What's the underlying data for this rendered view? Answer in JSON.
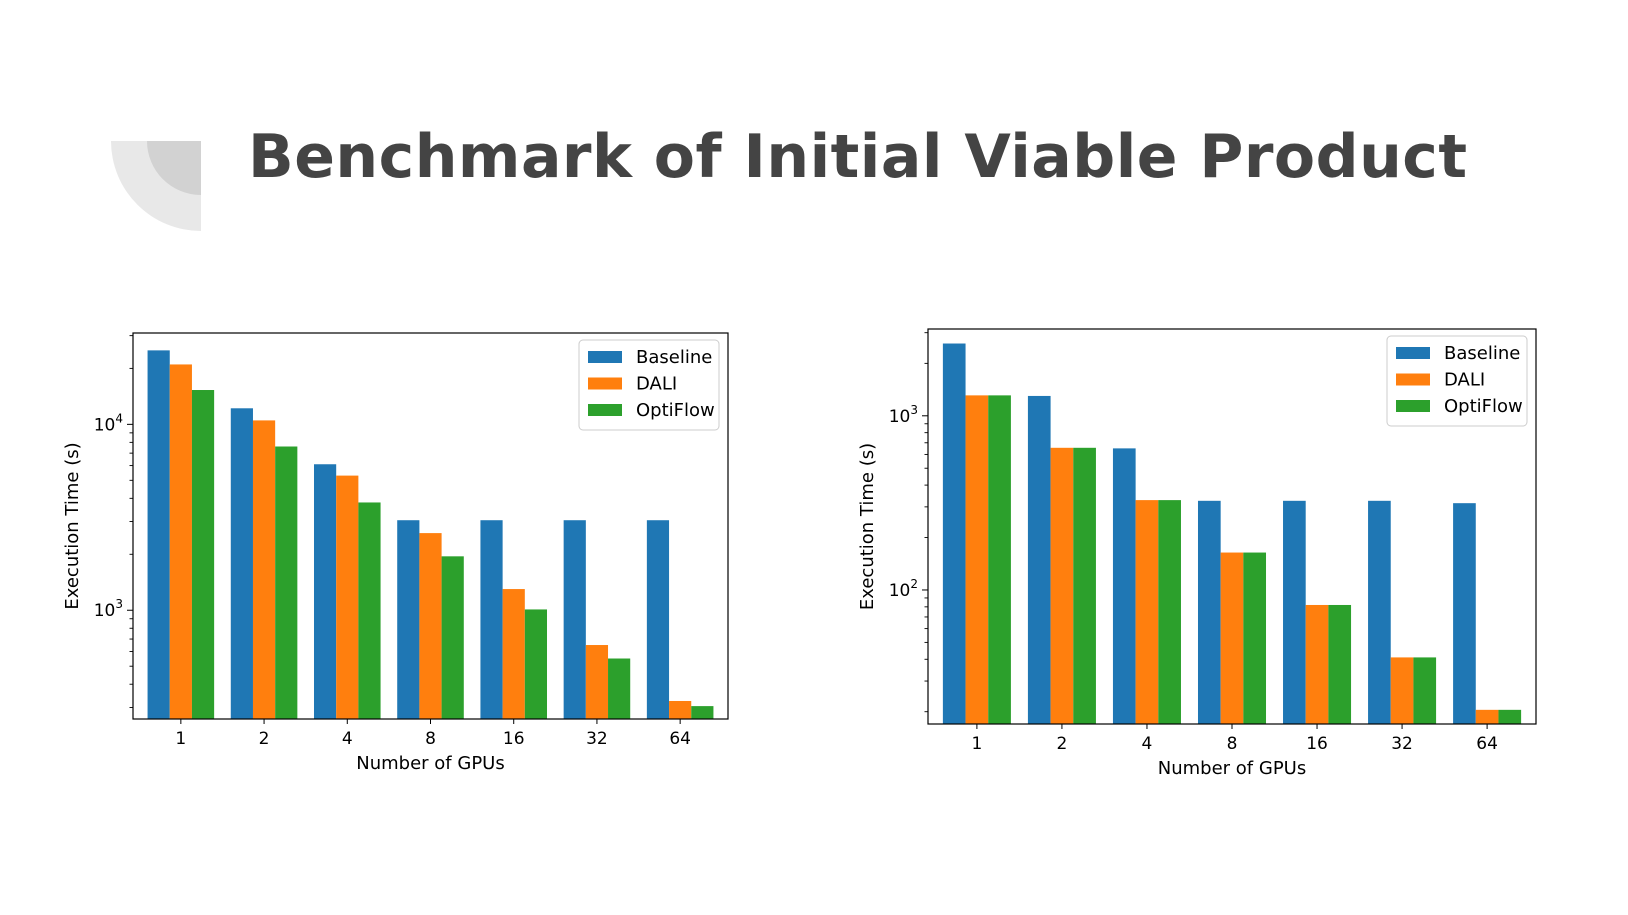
{
  "slide": {
    "title": "Benchmark of Initial Viable Product"
  },
  "colors": {
    "baseline": "#1f77b4",
    "dali": "#ff7f0e",
    "optiflow": "#2ca02c",
    "title": "#444444"
  },
  "chart_data": [
    {
      "type": "bar",
      "yscale": "log",
      "categories": [
        "1",
        "2",
        "4",
        "8",
        "16",
        "32",
        "64"
      ],
      "series": [
        {
          "name": "Baseline",
          "values": [
            25000,
            12200,
            6100,
            3050,
            3050,
            3050,
            3050
          ]
        },
        {
          "name": "DALI",
          "values": [
            21000,
            10500,
            5300,
            2600,
            1300,
            650,
            325
          ]
        },
        {
          "name": "OptiFlow",
          "values": [
            15300,
            7600,
            3800,
            1950,
            1010,
            550,
            305
          ]
        }
      ],
      "xlabel": "Number of GPUs",
      "ylabel": "Execution Time (s)",
      "ylim": [
        260,
        31000
      ],
      "yticks": [
        {
          "value": 1000,
          "base": "10",
          "exp": "3"
        },
        {
          "value": 10000,
          "base": "10",
          "exp": "4"
        }
      ],
      "legend": "top-right"
    },
    {
      "type": "bar",
      "yscale": "log",
      "categories": [
        "1",
        "2",
        "4",
        "8",
        "16",
        "32",
        "64"
      ],
      "series": [
        {
          "name": "Baseline",
          "values": [
            2600,
            1300,
            650,
            325,
            325,
            325,
            315
          ]
        },
        {
          "name": "DALI",
          "values": [
            1310,
            655,
            328,
            164,
            82,
            41,
            20.5
          ]
        },
        {
          "name": "OptiFlow",
          "values": [
            1310,
            655,
            328,
            164,
            82,
            41,
            20.5
          ]
        }
      ],
      "xlabel": "Number of GPUs",
      "ylabel": "Execution Time (s)",
      "ylim": [
        17,
        3150
      ],
      "yticks": [
        {
          "value": 100,
          "base": "10",
          "exp": "2"
        },
        {
          "value": 1000,
          "base": "10",
          "exp": "3"
        }
      ],
      "legend": "top-right"
    }
  ]
}
